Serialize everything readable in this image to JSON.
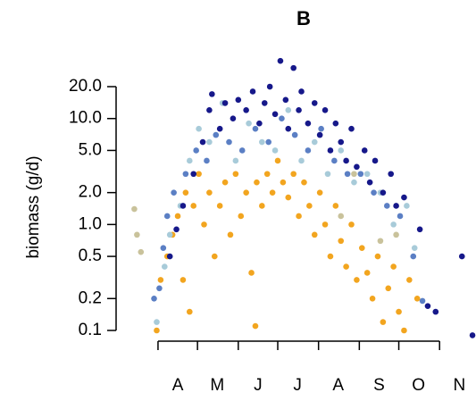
{
  "chart_data": {
    "type": "scatter",
    "title": "B",
    "ylabel": "biomass (g/d)",
    "log_y": true,
    "xlim": [
      70,
      332
    ],
    "ylim": [
      0.08,
      40
    ],
    "xticks": [
      {
        "value": 91,
        "label": "A"
      },
      {
        "value": 121,
        "label": "M"
      },
      {
        "value": 152,
        "label": "J"
      },
      {
        "value": 182,
        "label": "J"
      },
      {
        "value": 213,
        "label": "A"
      },
      {
        "value": 244,
        "label": "S"
      },
      {
        "value": 274,
        "label": "O"
      },
      {
        "value": 305,
        "label": "N"
      }
    ],
    "yticks": [
      0.1,
      0.2,
      0.5,
      {
        "value": 1,
        "label": "1.0"
      },
      {
        "value": 2,
        "label": "2.0"
      },
      {
        "value": 5,
        "label": "5.0"
      },
      {
        "value": 10,
        "label": "10.0"
      },
      {
        "value": 20,
        "label": "20.0"
      }
    ],
    "series": [
      {
        "color": "#f2a51f",
        "x": [
          90,
          93,
          98,
          102,
          106,
          110,
          112,
          115,
          118,
          122,
          126,
          130,
          134,
          138,
          142,
          146,
          150,
          154,
          158,
          162,
          166,
          170,
          174,
          178,
          182,
          186,
          190,
          194,
          198,
          202,
          206,
          210,
          214,
          218,
          222,
          226,
          230,
          234,
          238,
          242,
          246,
          250,
          254,
          258,
          262,
          266,
          270,
          274,
          278,
          282,
          288,
          165
        ],
        "values": [
          0.1,
          0.3,
          0.5,
          0.8,
          1.2,
          0.3,
          2,
          0.15,
          1.5,
          3,
          1,
          2,
          0.5,
          1.5,
          2.5,
          0.8,
          3,
          1.2,
          2,
          0.35,
          2.5,
          1.5,
          3,
          2,
          4,
          2.5,
          1.8,
          3,
          1.2,
          2.5,
          1.5,
          0.8,
          2,
          1,
          0.5,
          1.5,
          0.7,
          0.4,
          1,
          0.3,
          0.6,
          0.35,
          0.2,
          0.5,
          0.12,
          0.25,
          0.4,
          0.15,
          0.1,
          0.3,
          0.2,
          0.11
        ]
      },
      {
        "color": "#c9c29b",
        "x": [
          73,
          75,
          78,
          230,
          260,
          272,
          240
        ],
        "values": [
          1.4,
          0.8,
          0.55,
          1.2,
          0.7,
          0.8,
          3
        ]
      },
      {
        "color": "#a8cbd9",
        "x": [
          90,
          96,
          100,
          108,
          115,
          122,
          130,
          140,
          150,
          160,
          170,
          180,
          190,
          200,
          210,
          220,
          230,
          240,
          250,
          260,
          270,
          280,
          286
        ],
        "values": [
          0.12,
          0.4,
          0.8,
          1.5,
          4,
          8,
          6,
          14,
          4,
          9,
          6,
          5,
          12,
          4,
          6,
          3,
          5,
          2.5,
          3,
          2,
          1,
          1.5,
          0.6
        ]
      },
      {
        "color": "#5b7fc4",
        "x": [
          88,
          92,
          95,
          98,
          103,
          112,
          120,
          128,
          135,
          145,
          155,
          165,
          175,
          185,
          195,
          205,
          215,
          225,
          235,
          245,
          255,
          265,
          275,
          285,
          292
        ],
        "values": [
          0.2,
          0.25,
          0.6,
          1.2,
          2,
          3,
          5,
          4,
          7,
          6,
          5,
          8,
          6,
          10,
          7,
          5,
          8,
          4,
          3,
          3,
          2,
          1.5,
          1.2,
          0.5,
          0.19
        ]
      },
      {
        "color": "#16188a",
        "x": [
          100,
          105,
          110,
          118,
          125,
          130,
          132,
          138,
          142,
          148,
          152,
          158,
          163,
          168,
          172,
          176,
          180,
          184,
          188,
          190,
          194,
          198,
          200,
          205,
          210,
          214,
          218,
          222,
          226,
          230,
          234,
          238,
          242,
          248,
          252,
          256,
          262,
          268,
          272,
          278,
          290,
          296,
          302,
          322,
          330
        ],
        "values": [
          0.5,
          0.9,
          1.5,
          3,
          6,
          12,
          17,
          8,
          14,
          10,
          15,
          12,
          18,
          9,
          14,
          20,
          11,
          35,
          15,
          8,
          30,
          12,
          18,
          9,
          14,
          7,
          12,
          5,
          9,
          6,
          4,
          8,
          3.5,
          5,
          2.5,
          4,
          2,
          3,
          1.5,
          1.8,
          0.9,
          0.17,
          0.15,
          0.5,
          0.09
        ]
      }
    ]
  }
}
